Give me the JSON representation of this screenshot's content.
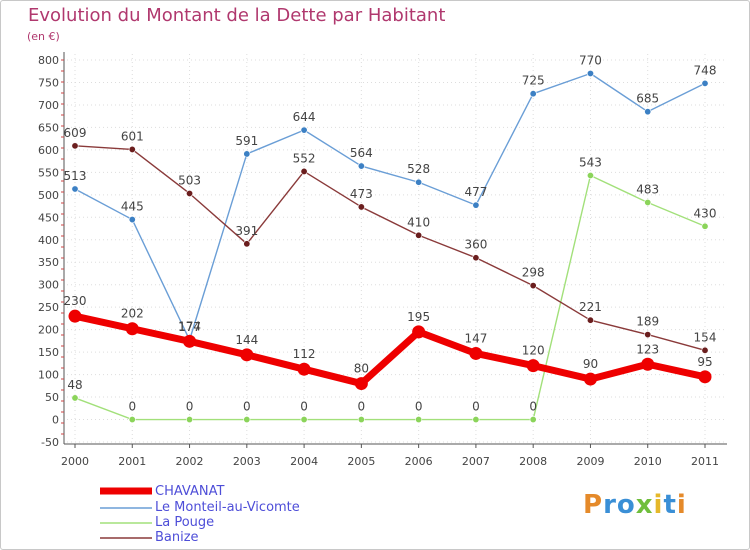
{
  "header": {
    "title": "Evolution du Montant de la Dette par Habitant",
    "subtitle": "(en €)"
  },
  "colors": {
    "title": "#b0386e",
    "legend_text": "#4e4ed8",
    "axis": "#555555",
    "tick_label": "#444444",
    "grid": "#dddddd"
  },
  "chart_data": {
    "type": "line",
    "title": "Evolution du Montant de la Dette par Habitant",
    "subtitle": "(en €)",
    "categories": [
      "2000",
      "2001",
      "2002",
      "2003",
      "2004",
      "2005",
      "2006",
      "2007",
      "2008",
      "2009",
      "2010",
      "2011"
    ],
    "ylim": [
      -50,
      800
    ],
    "yticks": [
      -50,
      0,
      50,
      100,
      150,
      200,
      250,
      300,
      350,
      400,
      450,
      500,
      550,
      600,
      650,
      700,
      750,
      800
    ],
    "legend_position": "bottom-left",
    "series": [
      {
        "name": "CHAVANAT",
        "color": "#ee0000",
        "marker_color": "#ee0000",
        "highlight": true,
        "values": [
          230,
          202,
          174,
          144,
          112,
          80,
          195,
          147,
          120,
          90,
          123,
          95
        ]
      },
      {
        "name": "Le Monteil-au-Vicomte",
        "color": "#6a9ed6",
        "marker_color": "#3c80c4",
        "highlight": false,
        "values": [
          513,
          445,
          177,
          591,
          644,
          564,
          528,
          477,
          725,
          770,
          685,
          748
        ]
      },
      {
        "name": "La Pouge",
        "color": "#a2e07a",
        "marker_color": "#8bd45a",
        "highlight": false,
        "values": [
          48,
          0,
          0,
          0,
          0,
          0,
          0,
          0,
          0,
          543,
          483,
          430
        ]
      },
      {
        "name": "Banize",
        "color": "#8a3a3a",
        "marker_color": "#6b1e1e",
        "highlight": false,
        "values": [
          609,
          601,
          503,
          391,
          552,
          473,
          410,
          360,
          298,
          221,
          189,
          154
        ]
      }
    ]
  },
  "logo": {
    "letters": [
      {
        "char": "P",
        "color": "#e58a2a"
      },
      {
        "char": "r",
        "color": "#3a8fd6"
      },
      {
        "char": "o",
        "color": "#3a8fd6"
      },
      {
        "char": "x",
        "color": "#6fbe3c"
      },
      {
        "char": "i",
        "color": "#e5b82a"
      },
      {
        "char": "t",
        "color": "#3a8fd6"
      },
      {
        "char": "i",
        "color": "#e58a2a"
      }
    ]
  }
}
